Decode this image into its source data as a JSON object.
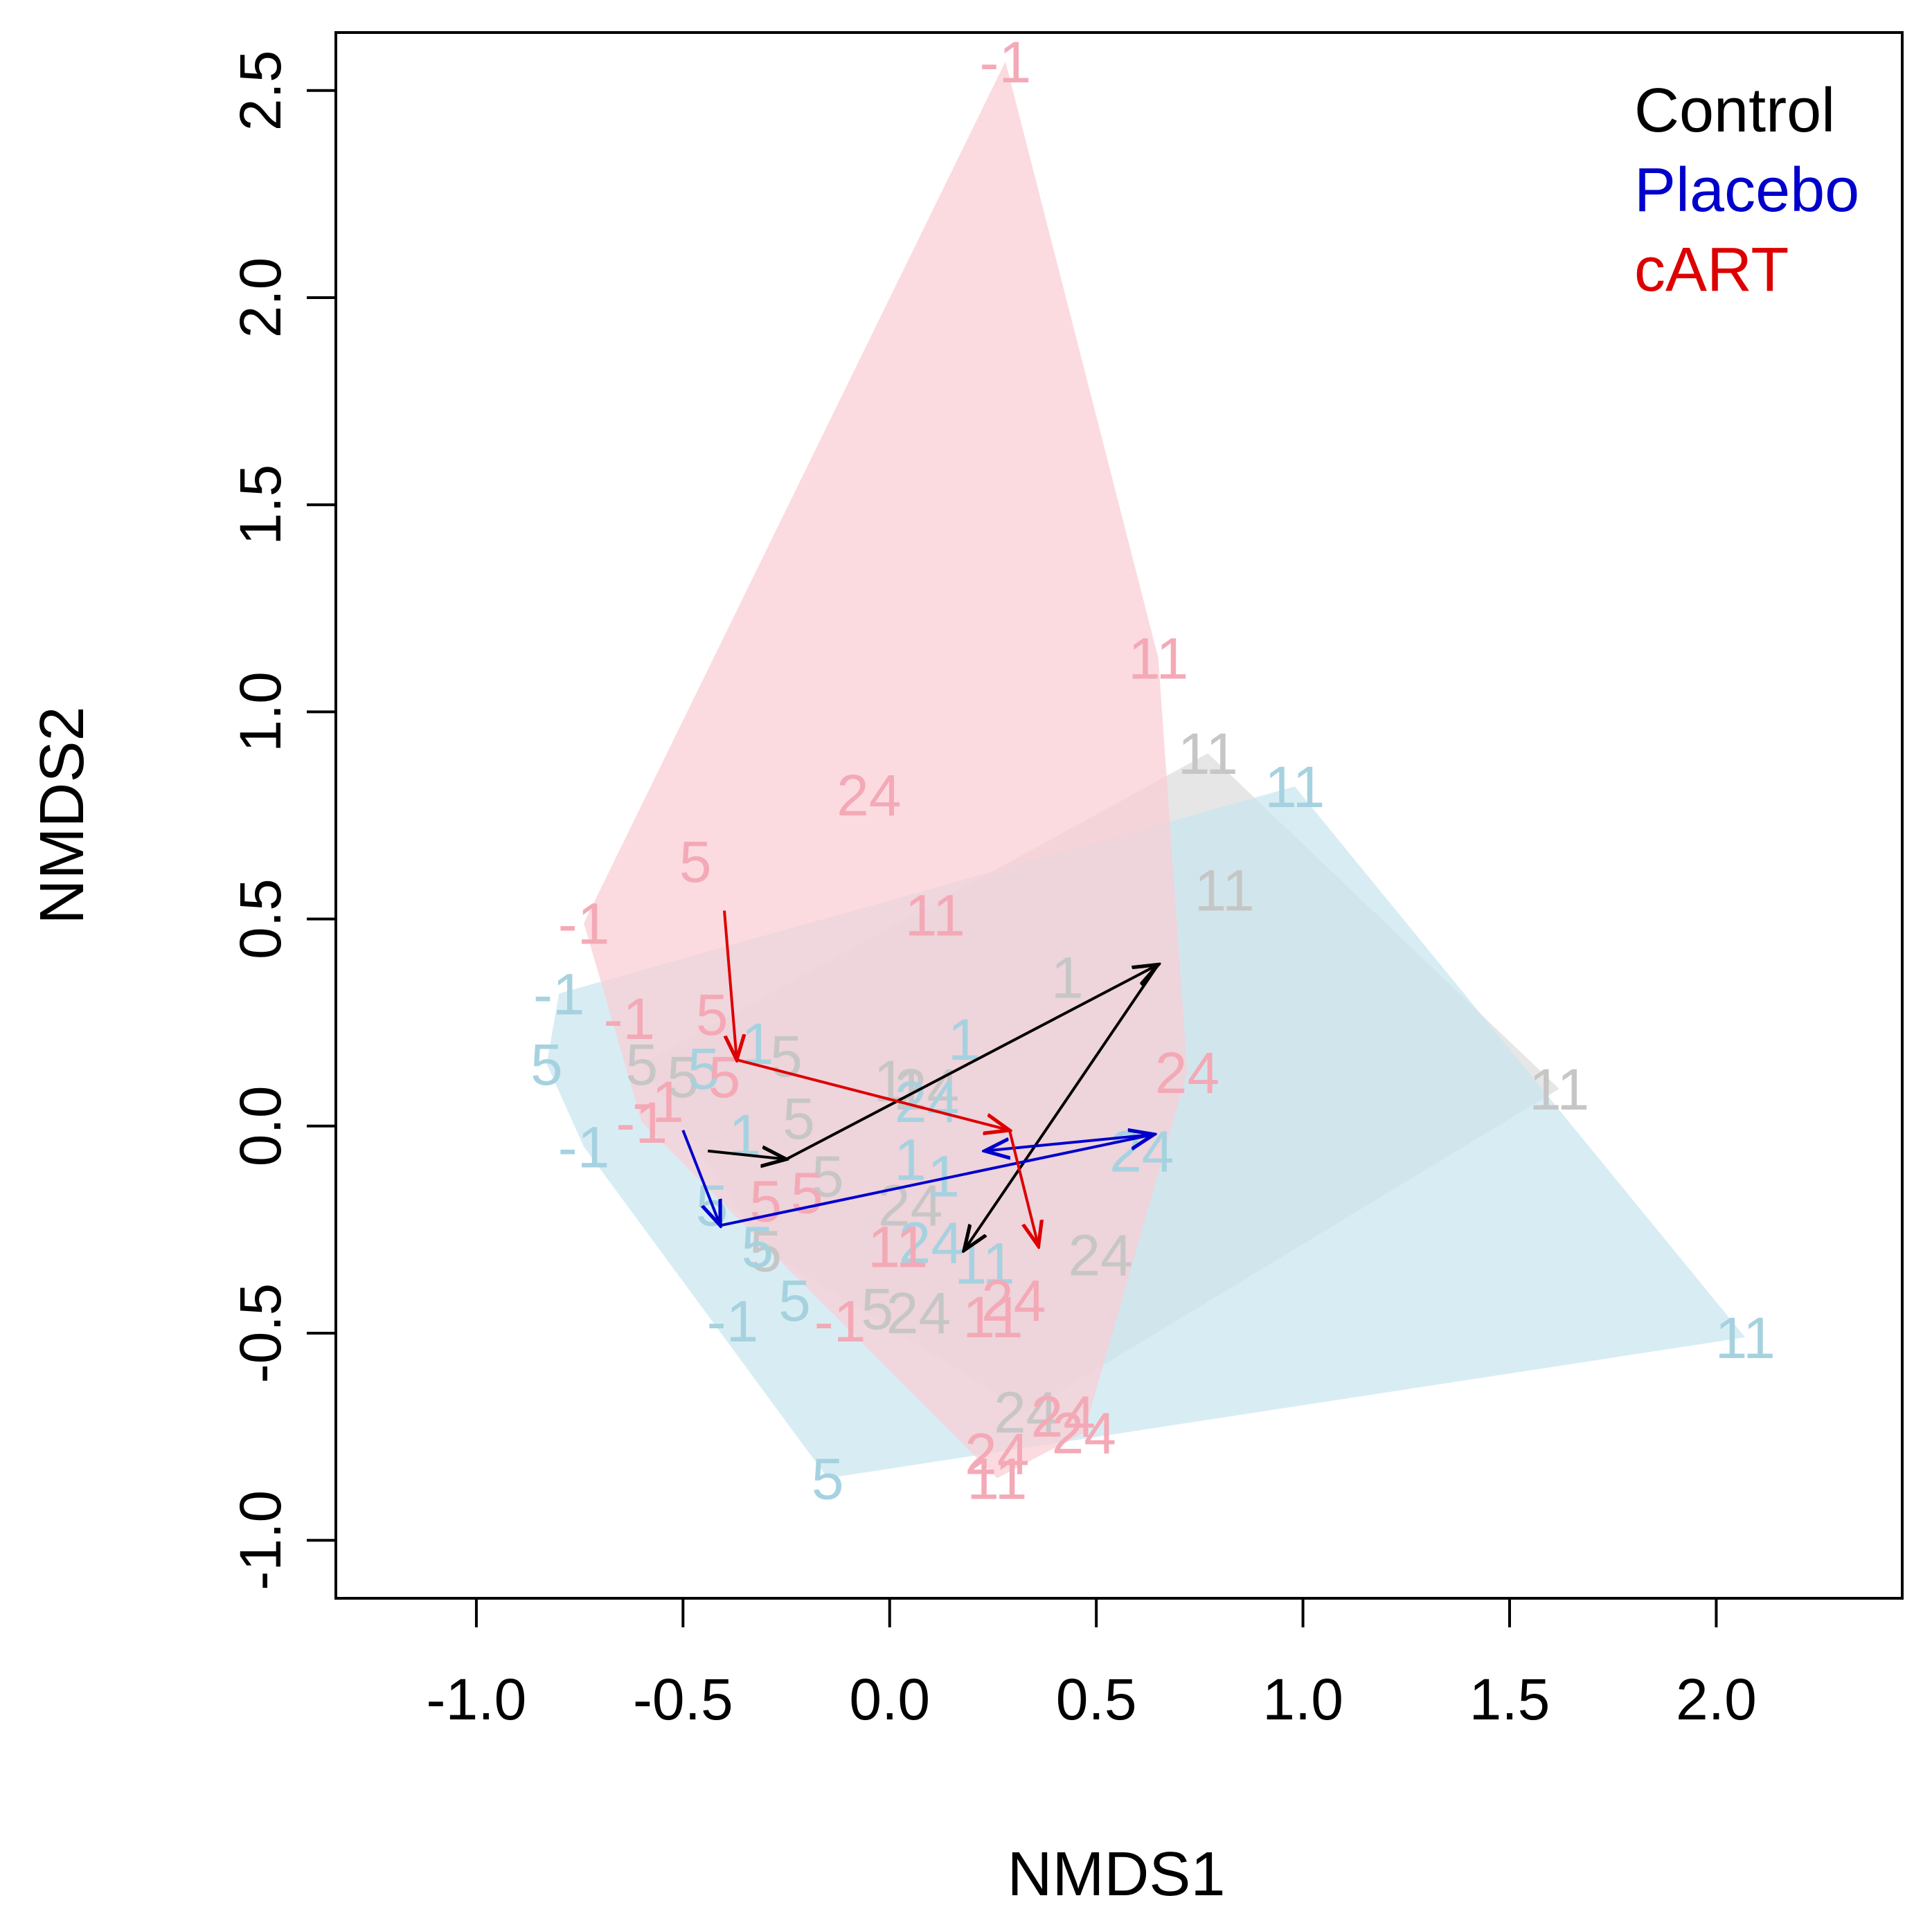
{
  "chart_data": {
    "type": "scatter",
    "subtype": "NMDS ordination with group hulls, point labels and centroid trajectory arrows",
    "title": "",
    "xlabel": "NMDS1",
    "ylabel": "NMDS2",
    "xlim": [
      -1.34,
      2.45
    ],
    "ylim": [
      -1.14,
      2.64
    ],
    "xticks": [
      -1.0,
      -0.5,
      0.0,
      0.5,
      1.0,
      1.5,
      2.0
    ],
    "xtick_labels": [
      "-1.0",
      "-0.5",
      "0.0",
      "0.5",
      "1.0",
      "1.5",
      "2.0"
    ],
    "yticks": [
      -1.0,
      -0.5,
      0.0,
      0.5,
      1.0,
      1.5,
      2.0,
      2.5
    ],
    "ytick_labels": [
      "-1.0",
      "-0.5",
      "0.0",
      "0.5",
      "1.0",
      "1.5",
      "2.0",
      "2.5"
    ],
    "grid": false,
    "legend": {
      "position": "top-right",
      "entries": [
        {
          "label": "Control",
          "color": "#000000"
        },
        {
          "label": "Placebo",
          "color": "#0000cc"
        },
        {
          "label": "cART",
          "color": "#dd0000"
        }
      ]
    },
    "groups": [
      {
        "name": "Control",
        "line_color": "#000000",
        "label_color": "#c6c6c6",
        "hull_color": "#dcdcdc",
        "points": [
          {
            "x": -0.6,
            "y": 0.15,
            "label": "5"
          },
          {
            "x": -0.5,
            "y": 0.12,
            "label": "5"
          },
          {
            "x": -0.25,
            "y": 0.17,
            "label": "5"
          },
          {
            "x": -0.22,
            "y": 0.02,
            "label": "5"
          },
          {
            "x": -0.15,
            "y": -0.12,
            "label": "5"
          },
          {
            "x": -0.3,
            "y": -0.3,
            "label": "5"
          },
          {
            "x": -0.03,
            "y": -0.44,
            "label": "5"
          },
          {
            "x": 0.0,
            "y": 0.11,
            "label": "1"
          },
          {
            "x": 0.05,
            "y": 0.09,
            "label": "1"
          },
          {
            "x": 0.43,
            "y": 0.36,
            "label": "1"
          },
          {
            "x": 0.09,
            "y": 0.09,
            "label": "24"
          },
          {
            "x": 0.05,
            "y": -0.19,
            "label": "24"
          },
          {
            "x": 0.07,
            "y": -0.45,
            "label": "24"
          },
          {
            "x": 0.33,
            "y": -0.69,
            "label": "24"
          },
          {
            "x": 0.51,
            "y": -0.31,
            "label": "24"
          },
          {
            "x": 0.77,
            "y": 0.9,
            "label": "11"
          },
          {
            "x": 0.81,
            "y": 0.57,
            "label": "11"
          },
          {
            "x": 1.62,
            "y": 0.09,
            "label": "11"
          }
        ],
        "centroid_path": [
          {
            "x": -0.44,
            "y": -0.06,
            "label": "-1"
          },
          {
            "x": -0.25,
            "y": -0.08,
            "label": "5"
          },
          {
            "x": 0.65,
            "y": 0.39,
            "label": "11"
          },
          {
            "x": 0.18,
            "y": -0.3,
            "label": "24"
          }
        ]
      },
      {
        "name": "Placebo",
        "line_color": "#0000cc",
        "label_color": "#a6d2e0",
        "hull_color": "#c9e6ef",
        "points": [
          {
            "x": -0.8,
            "y": 0.32,
            "label": "-1"
          },
          {
            "x": -0.74,
            "y": -0.05,
            "label": "-1"
          },
          {
            "x": -0.38,
            "y": -0.47,
            "label": "-1"
          },
          {
            "x": -0.83,
            "y": 0.15,
            "label": "5"
          },
          {
            "x": -0.45,
            "y": 0.14,
            "label": "5"
          },
          {
            "x": -0.43,
            "y": -0.19,
            "label": "5"
          },
          {
            "x": -0.32,
            "y": -0.29,
            "label": "5"
          },
          {
            "x": -0.23,
            "y": -0.42,
            "label": "5"
          },
          {
            "x": -0.15,
            "y": -0.85,
            "label": "5"
          },
          {
            "x": -0.32,
            "y": 0.2,
            "label": "1"
          },
          {
            "x": -0.35,
            "y": -0.02,
            "label": "1"
          },
          {
            "x": 0.05,
            "y": -0.08,
            "label": "1"
          },
          {
            "x": 0.13,
            "y": -0.12,
            "label": "1"
          },
          {
            "x": 0.18,
            "y": 0.21,
            "label": "1"
          },
          {
            "x": 0.09,
            "y": 0.06,
            "label": "24"
          },
          {
            "x": 0.1,
            "y": -0.28,
            "label": "24"
          },
          {
            "x": 0.61,
            "y": -0.06,
            "label": "24"
          },
          {
            "x": 0.23,
            "y": -0.33,
            "label": "11"
          },
          {
            "x": 0.98,
            "y": 0.82,
            "label": "11"
          },
          {
            "x": 2.07,
            "y": -0.51,
            "label": "11"
          }
        ],
        "centroid_path": [
          {
            "x": -0.5,
            "y": -0.01,
            "label": "-1"
          },
          {
            "x": -0.41,
            "y": -0.24,
            "label": "5"
          },
          {
            "x": 0.64,
            "y": -0.02,
            "label": "24"
          },
          {
            "x": 0.23,
            "y": -0.06,
            "label": "11"
          }
        ]
      },
      {
        "name": "cART",
        "line_color": "#dd0000",
        "label_color": "#f4a9b6",
        "hull_color": "#f9cdd4",
        "points": [
          {
            "x": -0.74,
            "y": 0.49,
            "label": "-1"
          },
          {
            "x": -0.63,
            "y": 0.26,
            "label": "-1"
          },
          {
            "x": -0.56,
            "y": 0.06,
            "label": "-1"
          },
          {
            "x": -0.6,
            "y": 0.01,
            "label": "-1"
          },
          {
            "x": -0.12,
            "y": -0.47,
            "label": "-1"
          },
          {
            "x": 0.28,
            "y": 2.57,
            "label": "-1"
          },
          {
            "x": -0.47,
            "y": 0.64,
            "label": "5"
          },
          {
            "x": -0.43,
            "y": 0.27,
            "label": "5"
          },
          {
            "x": -0.4,
            "y": 0.12,
            "label": "5"
          },
          {
            "x": -0.3,
            "y": -0.18,
            "label": "5"
          },
          {
            "x": -0.2,
            "y": -0.16,
            "label": "5"
          },
          {
            "x": -0.05,
            "y": 0.8,
            "label": "24"
          },
          {
            "x": 0.72,
            "y": 0.13,
            "label": "24"
          },
          {
            "x": 0.3,
            "y": -0.42,
            "label": "24"
          },
          {
            "x": 0.42,
            "y": -0.7,
            "label": "24"
          },
          {
            "x": 0.47,
            "y": -0.74,
            "label": "24"
          },
          {
            "x": 0.26,
            "y": -0.79,
            "label": "24"
          },
          {
            "x": 0.65,
            "y": 1.13,
            "label": "11"
          },
          {
            "x": 0.11,
            "y": 0.51,
            "label": "11"
          },
          {
            "x": 0.02,
            "y": -0.29,
            "label": "11"
          },
          {
            "x": 0.25,
            "y": -0.46,
            "label": "11"
          },
          {
            "x": 0.26,
            "y": -0.85,
            "label": "11"
          }
        ],
        "centroid_path": [
          {
            "x": -0.4,
            "y": 0.52,
            "label": "-1"
          },
          {
            "x": -0.37,
            "y": 0.16,
            "label": "5"
          },
          {
            "x": 0.29,
            "y": -0.01,
            "label": "24"
          },
          {
            "x": 0.36,
            "y": -0.29,
            "label": "11"
          }
        ]
      }
    ]
  }
}
